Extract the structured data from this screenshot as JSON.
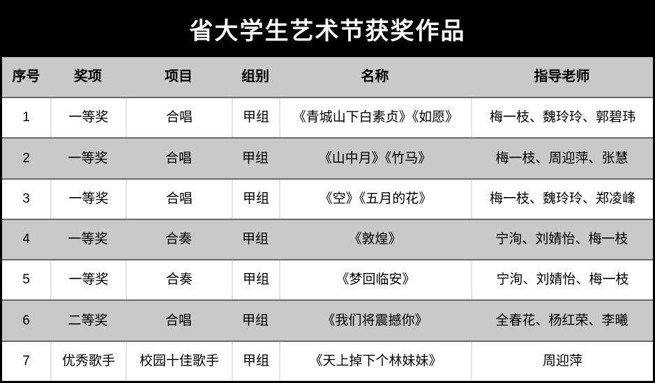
{
  "chart_data": {
    "type": "table",
    "title": "省大学生艺术节获奖作品",
    "columns": [
      "序号",
      "奖项",
      "项目",
      "组别",
      "名称",
      "指导老师"
    ],
    "rows": [
      [
        "1",
        "一等奖",
        "合唱",
        "甲组",
        "《青城山下白素贞》《如愿》",
        "梅一枝、魏玲玲、郭碧玮"
      ],
      [
        "2",
        "一等奖",
        "合唱",
        "甲组",
        "《山中月》《竹马》",
        "梅一枝、周迎萍、张慧"
      ],
      [
        "3",
        "一等奖",
        "合唱",
        "甲组",
        "《空》《五月的花》",
        "梅一枝、魏玲玲、郑凌峰"
      ],
      [
        "4",
        "一等奖",
        "合奏",
        "甲组",
        "《敦煌》",
        "宁洵、刘婧怡、梅一枝"
      ],
      [
        "5",
        "一等奖",
        "合奏",
        "甲组",
        "《梦回临安》",
        "宁洵、刘婧怡、梅一枝"
      ],
      [
        "6",
        "二等奖",
        "合唱",
        "甲组",
        "《我们将震撼你》",
        "全春花、杨红荣、李曦"
      ],
      [
        "7",
        "优秀歌手",
        "校园十佳歌手",
        "甲组",
        "《天上掉下个林妹妹》",
        "周迎萍"
      ]
    ],
    "layout": {
      "striped": true,
      "stripe_pattern": "even-rows-gray",
      "header_position": "top",
      "text_align": "center"
    }
  },
  "colors": {
    "title_bg": "#000000",
    "title_text": "#ffffff",
    "header_bg": "#c9c9c9",
    "stripe_bg": "#c9c9c9",
    "row_bg": "#ffffff",
    "row_separator": "#696969",
    "cell_divider": "#e5e5e5",
    "outer_border": "#000000",
    "cell_text": "#000000"
  }
}
